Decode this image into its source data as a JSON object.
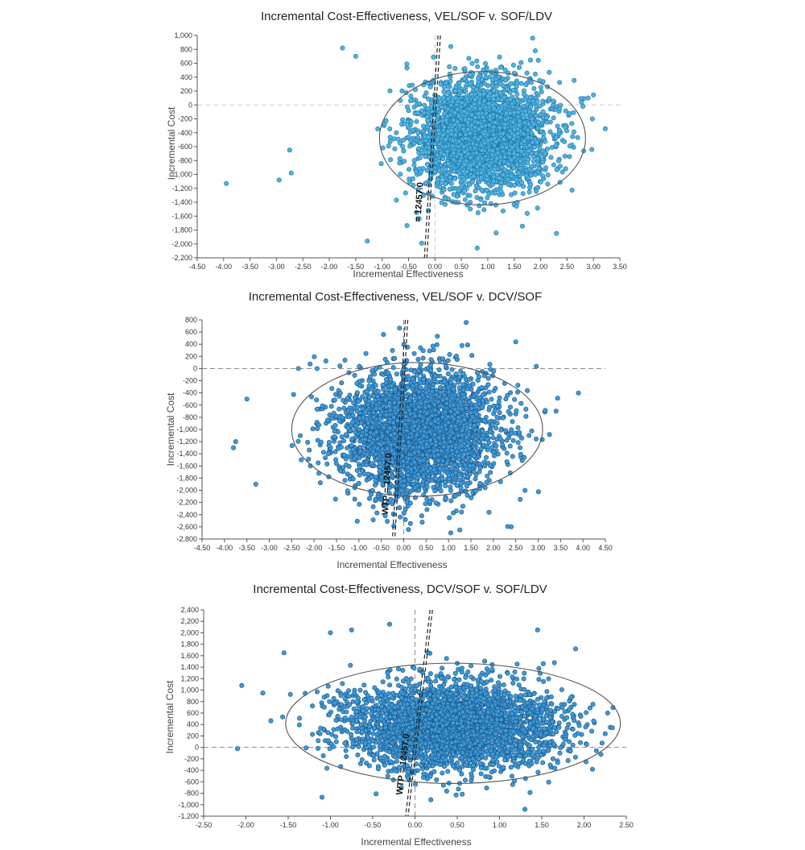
{
  "chart_data": [
    {
      "type": "scatter",
      "title": "Incremental Cost-Effectiveness, VEL/SOF v. SOF/LDV",
      "xlabel": "Incremental Effectiveness",
      "ylabel": "Incremental Cost",
      "xlim": [
        -4.5,
        3.5
      ],
      "ylim": [
        -2200,
        1000
      ],
      "xticks": [
        "-4.50",
        "-4.00",
        "-3.50",
        "-3.00",
        "-2.50",
        "-2.00",
        "-1.50",
        "-1.00",
        "-0.50",
        "0.00",
        "0.50",
        "1.00",
        "1.50",
        "2.00",
        "2.50",
        "3.00",
        "3.50"
      ],
      "yticks": [
        "1,000",
        "800",
        "600",
        "400",
        "200",
        "0",
        "-200",
        "-400",
        "-600",
        "-800",
        "-1,000",
        "-1,200",
        "-1,400",
        "-1,600",
        "-1,800",
        "-2,000",
        "-2,200"
      ],
      "point_color": "#4fb3e3",
      "point_stroke": "#1d6f9c",
      "zero_line_color": "#c8c8c8",
      "cloud": {
        "x_mean": 0.9,
        "x_sd": 0.62,
        "y_mean": -450,
        "y_sd": 390,
        "n": 3200,
        "seed": 11
      },
      "ellipse": {
        "cx": 0.9,
        "cy": -480,
        "rx": 1.95,
        "ry": 960
      },
      "wtp_label": "= 12457.0",
      "outliers": [
        [
          -3.95,
          -1130
        ],
        [
          -2.95,
          -1080
        ],
        [
          -2.75,
          -650
        ],
        [
          -2.72,
          -980
        ],
        [
          -1.75,
          820
        ],
        [
          -1.5,
          700
        ],
        [
          -1.28,
          -1960
        ],
        [
          -0.35,
          -1550
        ],
        [
          -0.25,
          -1990
        ],
        [
          0.3,
          840
        ],
        [
          0.8,
          -2060
        ],
        [
          2.9,
          100
        ],
        [
          2.98,
          -200
        ],
        [
          2.97,
          -640
        ],
        [
          2.8,
          -20
        ],
        [
          1.9,
          780
        ],
        [
          2.3,
          -1850
        ]
      ]
    },
    {
      "type": "scatter",
      "title": "Incremental Cost-Effectiveness, VEL/SOF v. DCV/SOF",
      "xlabel": "Incremental Effectiveness",
      "ylabel": "Incremental Cost",
      "xlim": [
        -4.5,
        4.5
      ],
      "ylim": [
        -2800,
        800
      ],
      "xticks": [
        "-4.50",
        "-4.00",
        "-3.50",
        "-3.00",
        "-2.50",
        "-2.00",
        "-1.50",
        "-1.00",
        "-0.50",
        "0.00",
        "0.50",
        "1.00",
        "1.50",
        "2.00",
        "2.50",
        "3.00",
        "3.50",
        "4.00",
        "4.50"
      ],
      "yticks": [
        "800",
        "600",
        "400",
        "200",
        "0",
        "-200",
        "-400",
        "-600",
        "-800",
        "-1,000",
        "-1,200",
        "-1,400",
        "-1,600",
        "-1,800",
        "-2,000",
        "-2,200",
        "-2,400",
        "-2,600",
        "-2,800"
      ],
      "point_color": "#3f9ad8",
      "point_stroke": "#1a4f80",
      "zero_line_color": "#8a8a8a",
      "cloud": {
        "x_mean": 0.3,
        "x_sd": 0.88,
        "y_mean": -1050,
        "y_sd": 500,
        "n": 3200,
        "seed": 23
      },
      "ellipse": {
        "cx": 0.3,
        "cy": -1000,
        "rx": 2.8,
        "ry": 1100
      },
      "wtp_label": "WTP = 12457.0",
      "outliers": [
        [
          -3.8,
          -1300
        ],
        [
          -3.75,
          -1200
        ],
        [
          -3.5,
          -500
        ],
        [
          -3.3,
          -1900
        ],
        [
          -2.35,
          0
        ],
        [
          -0.45,
          560
        ],
        [
          0.75,
          530
        ],
        [
          1.25,
          -2650
        ],
        [
          1.05,
          -2700
        ],
        [
          2.4,
          -2600
        ],
        [
          3.9,
          -400
        ],
        [
          3.4,
          -700
        ],
        [
          2.6,
          -2150
        ],
        [
          2.5,
          440
        ]
      ]
    },
    {
      "type": "scatter",
      "title": "Incremental Cost-Effectiveness, DCV/SOF v. SOF/LDV",
      "xlabel": "Incremental Effectiveness",
      "ylabel": "Incremental Cost",
      "xlim": [
        -2.5,
        2.5
      ],
      "ylim": [
        -1200,
        2400
      ],
      "xticks": [
        "-2.50",
        "-2.00",
        "-1.50",
        "-1.00",
        "-0.50",
        "0.00",
        "0.50",
        "1.00",
        "1.50",
        "2.00",
        "2.50"
      ],
      "yticks": [
        "2,400",
        "2,200",
        "2,000",
        "1,800",
        "1,600",
        "1,400",
        "1,200",
        "1,000",
        "800",
        "600",
        "400",
        "200",
        "0",
        "-200",
        "-400",
        "-600",
        "-800",
        "-1,000",
        "-1,200"
      ],
      "point_color": "#3d9ad6",
      "point_stroke": "#1a4f80",
      "zero_line_color": "#8a8a8a",
      "cloud": {
        "x_mean": 0.45,
        "x_sd": 0.62,
        "y_mean": 380,
        "y_sd": 380,
        "n": 3200,
        "seed": 37
      },
      "ellipse": {
        "cx": 0.45,
        "cy": 420,
        "rx": 1.98,
        "ry": 1050
      },
      "wtp_label": "WTP = 12457.0",
      "outliers": [
        [
          -2.1,
          -20
        ],
        [
          -2.05,
          1080
        ],
        [
          -1.8,
          950
        ],
        [
          -1.55,
          1650
        ],
        [
          -1.1,
          -870
        ],
        [
          -1.0,
          2000
        ],
        [
          -0.3,
          2150
        ],
        [
          -0.75,
          2050
        ],
        [
          1.3,
          -1080
        ],
        [
          2.28,
          600
        ],
        [
          2.25,
          240
        ],
        [
          2.1,
          -380
        ],
        [
          2.2,
          -120
        ],
        [
          1.9,
          1720
        ],
        [
          1.45,
          2050
        ]
      ]
    }
  ]
}
